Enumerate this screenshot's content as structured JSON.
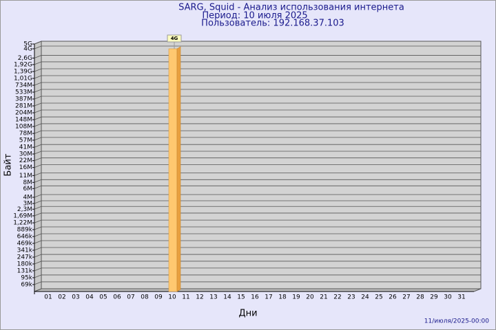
{
  "chart_data": {
    "type": "bar",
    "title": "SARG, Squid - Анализ использования интернета",
    "subtitle": [
      "Период: 10 июля 2025",
      "Пользователь: 192.168.37.103"
    ],
    "ylabel": "Байт",
    "xlabel": "Дни",
    "timestamp": "11/июля/2025-00:00",
    "categories": [
      "01",
      "02",
      "03",
      "04",
      "05",
      "06",
      "07",
      "08",
      "09",
      "10",
      "11",
      "12",
      "13",
      "14",
      "15",
      "16",
      "17",
      "18",
      "19",
      "20",
      "21",
      "22",
      "23",
      "24",
      "25",
      "26",
      "27",
      "28",
      "29",
      "30",
      "31"
    ],
    "values": [
      null,
      null,
      null,
      null,
      null,
      null,
      null,
      null,
      null,
      4000000000,
      null,
      null,
      null,
      null,
      null,
      null,
      null,
      null,
      null,
      null,
      null,
      null,
      null,
      null,
      null,
      null,
      null,
      null,
      null,
      null,
      null
    ],
    "value_labels": [
      null,
      null,
      null,
      null,
      null,
      null,
      null,
      null,
      null,
      "4G",
      null,
      null,
      null,
      null,
      null,
      null,
      null,
      null,
      null,
      null,
      null,
      null,
      null,
      null,
      null,
      null,
      null,
      null,
      null,
      null,
      null
    ],
    "color": "#ffc870",
    "yscale": "log",
    "grid": true,
    "ylim": [
      50000,
      5000000000
    ],
    "yticks": [
      {
        "value": 69000,
        "label": "69k"
      },
      {
        "value": 95000,
        "label": "95k"
      },
      {
        "value": 131000,
        "label": "131k"
      },
      {
        "value": 180000,
        "label": "180k"
      },
      {
        "value": 247000,
        "label": "247k"
      },
      {
        "value": 341000,
        "label": "341k"
      },
      {
        "value": 469000,
        "label": "469k"
      },
      {
        "value": 646000,
        "label": "646k"
      },
      {
        "value": 889000,
        "label": "889k"
      },
      {
        "value": 1220000,
        "label": "1,22M"
      },
      {
        "value": 1690000,
        "label": "1,69M"
      },
      {
        "value": 2300000,
        "label": "2,3M"
      },
      {
        "value": 3000000,
        "label": "3M"
      },
      {
        "value": 4000000,
        "label": "4M"
      },
      {
        "value": 6000000,
        "label": "6M"
      },
      {
        "value": 8000000,
        "label": "8M"
      },
      {
        "value": 11000000,
        "label": "11M"
      },
      {
        "value": 16000000,
        "label": "16M"
      },
      {
        "value": 22000000,
        "label": "22M"
      },
      {
        "value": 30000000,
        "label": "30M"
      },
      {
        "value": 41000000,
        "label": "41M"
      },
      {
        "value": 57000000,
        "label": "57M"
      },
      {
        "value": 78000000,
        "label": "78M"
      },
      {
        "value": 108000000,
        "label": "108M"
      },
      {
        "value": 148000000,
        "label": "148M"
      },
      {
        "value": 204000000,
        "label": "204M"
      },
      {
        "value": 281000000,
        "label": "281M"
      },
      {
        "value": 387000000,
        "label": "387M"
      },
      {
        "value": 533000000,
        "label": "533M"
      },
      {
        "value": 734000000,
        "label": "734M"
      },
      {
        "value": 1010000000,
        "label": "1,01G"
      },
      {
        "value": 1390000000,
        "label": "1,39G"
      },
      {
        "value": 1920000000,
        "label": "1,92G"
      },
      {
        "value": 2600000000,
        "label": "2,6G"
      },
      {
        "value": 4000000000,
        "label": "4G"
      },
      {
        "value": 5000000000,
        "label": "5G"
      }
    ]
  }
}
